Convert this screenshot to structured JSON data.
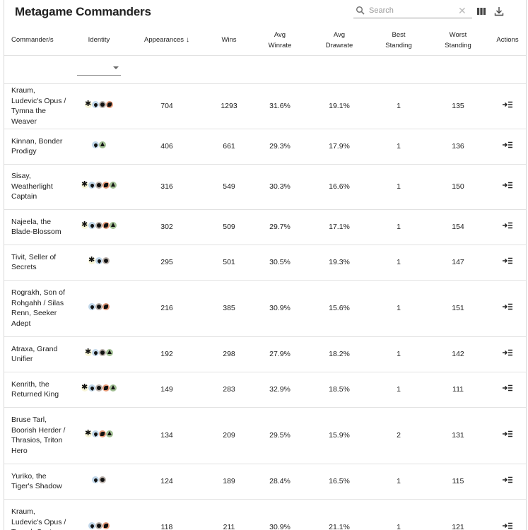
{
  "header": {
    "title": "Metagame Commanders",
    "search_placeholder": "Search",
    "clear_glyph": "✕",
    "icons": [
      "search-icon",
      "columns-icon",
      "download-icon"
    ]
  },
  "columns": [
    {
      "l1": "Commander/s",
      "l2": ""
    },
    {
      "l1": "Identity",
      "l2": ""
    },
    {
      "l1": "Appearances",
      "l2": "",
      "sort": "↓"
    },
    {
      "l1": "Wins",
      "l2": ""
    },
    {
      "l1": "Avg",
      "l2": "Winrate"
    },
    {
      "l1": "Avg",
      "l2": "Drawrate"
    },
    {
      "l1": "Best",
      "l2": "Standing"
    },
    {
      "l1": "Worst",
      "l2": "Standing"
    },
    {
      "l1": "Actions",
      "l2": ""
    }
  ],
  "colors": {
    "W": "#f8f6d8",
    "U": "#c1d7e9",
    "B": "#bab1ab",
    "R": "#e49977",
    "G": "#a3c095"
  },
  "rows": [
    {
      "name": "Kraum, Ludevic's Opus / Tymna the Weaver",
      "identity": [
        "W",
        "U",
        "B",
        "R"
      ],
      "appearances": "704",
      "wins": "1293",
      "winrate": "31.6%",
      "drawrate": "19.1%",
      "best": "1",
      "worst": "135",
      "action_icon": "open-details-icon"
    },
    {
      "name": "Kinnan, Bonder Prodigy",
      "identity": [
        "U",
        "G"
      ],
      "appearances": "406",
      "wins": "661",
      "winrate": "29.3%",
      "drawrate": "17.9%",
      "best": "1",
      "worst": "136",
      "action_icon": "open-details-icon"
    },
    {
      "name": "Sisay, Weatherlight Captain",
      "identity": [
        "W",
        "U",
        "B",
        "R",
        "G"
      ],
      "appearances": "316",
      "wins": "549",
      "winrate": "30.3%",
      "drawrate": "16.6%",
      "best": "1",
      "worst": "150",
      "action_icon": "open-details-icon"
    },
    {
      "name": "Najeela, the Blade-Blossom",
      "identity": [
        "W",
        "U",
        "B",
        "R",
        "G"
      ],
      "appearances": "302",
      "wins": "509",
      "winrate": "29.7%",
      "drawrate": "17.1%",
      "best": "1",
      "worst": "154",
      "action_icon": "open-details-icon"
    },
    {
      "name": "Tivit, Seller of Secrets",
      "identity": [
        "W",
        "U",
        "B"
      ],
      "appearances": "295",
      "wins": "501",
      "winrate": "30.5%",
      "drawrate": "19.3%",
      "best": "1",
      "worst": "147",
      "action_icon": "open-details-icon"
    },
    {
      "name": "Rograkh, Son of Rohgahh / Silas Renn, Seeker Adept",
      "identity": [
        "U",
        "B",
        "R"
      ],
      "appearances": "216",
      "wins": "385",
      "winrate": "30.9%",
      "drawrate": "15.6%",
      "best": "1",
      "worst": "151",
      "action_icon": "open-details-icon"
    },
    {
      "name": "Atraxa, Grand Unifier",
      "identity": [
        "W",
        "U",
        "B",
        "G"
      ],
      "appearances": "192",
      "wins": "298",
      "winrate": "27.9%",
      "drawrate": "18.2%",
      "best": "1",
      "worst": "142",
      "action_icon": "open-details-icon"
    },
    {
      "name": "Kenrith, the Returned King",
      "identity": [
        "W",
        "U",
        "B",
        "R",
        "G"
      ],
      "appearances": "149",
      "wins": "283",
      "winrate": "32.9%",
      "drawrate": "18.5%",
      "best": "1",
      "worst": "111",
      "action_icon": "open-details-icon"
    },
    {
      "name": "Bruse Tarl, Boorish Herder / Thrasios, Triton Hero",
      "identity": [
        "W",
        "U",
        "R",
        "G"
      ],
      "appearances": "134",
      "wins": "209",
      "winrate": "29.5%",
      "drawrate": "15.9%",
      "best": "2",
      "worst": "131",
      "action_icon": "open-details-icon"
    },
    {
      "name": "Yuriko, the Tiger's Shadow",
      "identity": [
        "U",
        "B"
      ],
      "appearances": "124",
      "wins": "189",
      "winrate": "28.4%",
      "drawrate": "16.5%",
      "best": "1",
      "worst": "115",
      "action_icon": "open-details-icon"
    },
    {
      "name": "Kraum, Ludevic's Opus / Tevesh Szat, Doom of Fools",
      "identity": [
        "U",
        "B",
        "R"
      ],
      "appearances": "118",
      "wins": "211",
      "winrate": "30.9%",
      "drawrate": "21.1%",
      "best": "1",
      "worst": "121",
      "action_icon": "open-details-icon"
    }
  ]
}
